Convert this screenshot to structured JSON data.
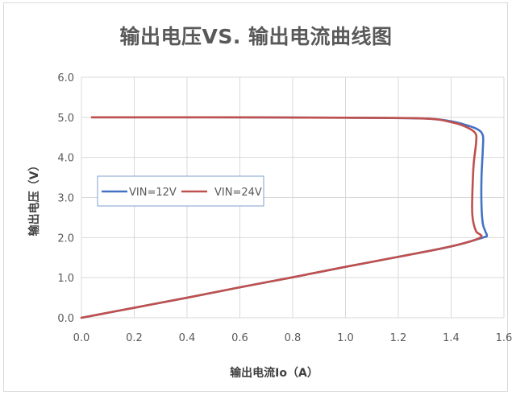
{
  "chart_data": {
    "type": "line",
    "title": "输出电压VS. 输出电流曲线图",
    "xlabel": "输出电流Io（A）",
    "ylabel": "输出电压（V）",
    "xlim": [
      0,
      1.6
    ],
    "ylim": [
      0,
      6
    ],
    "xticks": [
      "0.0",
      "0.2",
      "0.4",
      "0.6",
      "0.8",
      "1.0",
      "1.2",
      "1.4",
      "1.6"
    ],
    "yticks": [
      "0.0",
      "1.0",
      "2.0",
      "3.0",
      "4.0",
      "5.0",
      "6.0"
    ],
    "grid": true,
    "legend_position": "left-middle",
    "series": [
      {
        "name": "VIN=12V",
        "color": "#4472c4",
        "points": [
          [
            0.04,
            5.0
          ],
          [
            0.5,
            5.0
          ],
          [
            1.0,
            4.99
          ],
          [
            1.3,
            4.97
          ],
          [
            1.4,
            4.9
          ],
          [
            1.46,
            4.8
          ],
          [
            1.5,
            4.7
          ],
          [
            1.52,
            4.55
          ],
          [
            1.52,
            4.2
          ],
          [
            1.515,
            3.5
          ],
          [
            1.515,
            2.8
          ],
          [
            1.52,
            2.35
          ],
          [
            1.53,
            2.15
          ],
          [
            1.535,
            2.05
          ],
          [
            1.52,
            2.0
          ],
          [
            1.4,
            1.78
          ],
          [
            1.2,
            1.52
          ],
          [
            1.0,
            1.27
          ],
          [
            0.8,
            1.01
          ],
          [
            0.6,
            0.76
          ],
          [
            0.4,
            0.5
          ],
          [
            0.2,
            0.25
          ],
          [
            0.0,
            0.0
          ]
        ]
      },
      {
        "name": "VIN=24V",
        "color": "#c0504d",
        "points": [
          [
            0.04,
            5.0
          ],
          [
            0.5,
            5.0
          ],
          [
            1.0,
            4.99
          ],
          [
            1.3,
            4.97
          ],
          [
            1.4,
            4.88
          ],
          [
            1.45,
            4.78
          ],
          [
            1.49,
            4.62
          ],
          [
            1.495,
            4.4
          ],
          [
            1.485,
            3.8
          ],
          [
            1.48,
            3.0
          ],
          [
            1.48,
            2.6
          ],
          [
            1.485,
            2.35
          ],
          [
            1.495,
            2.15
          ],
          [
            1.51,
            2.0
          ],
          [
            1.4,
            1.78
          ],
          [
            1.2,
            1.52
          ],
          [
            1.0,
            1.27
          ],
          [
            0.8,
            1.01
          ],
          [
            0.6,
            0.76
          ],
          [
            0.4,
            0.5
          ],
          [
            0.2,
            0.25
          ],
          [
            0.0,
            0.0
          ]
        ]
      }
    ]
  }
}
